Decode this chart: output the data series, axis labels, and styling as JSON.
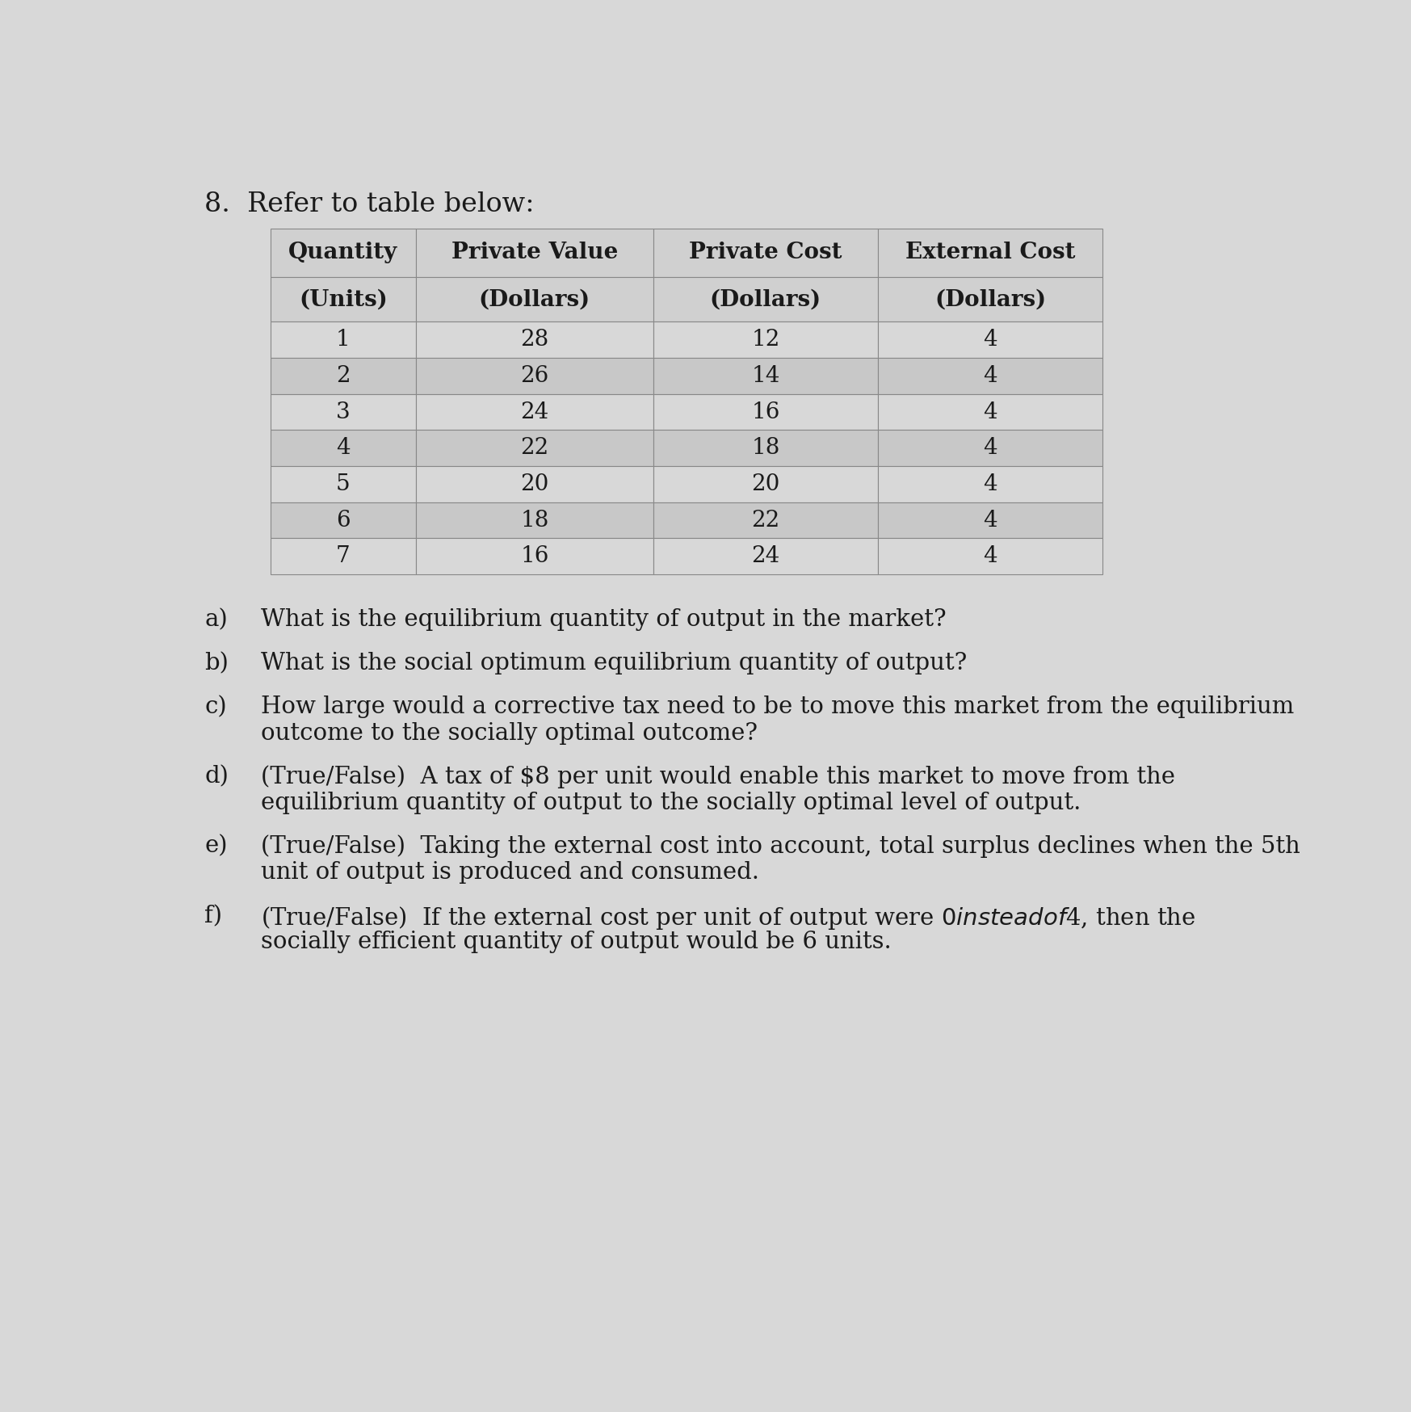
{
  "title": "8.  Refer to table below:",
  "col_headers_line1": [
    "Quantity",
    "Private Value",
    "Private Cost",
    "External Cost"
  ],
  "col_headers_line2": [
    "(Units)",
    "(Dollars)",
    "(Dollars)",
    "(Dollars)"
  ],
  "table_data": [
    [
      "1",
      "28",
      "12",
      "4"
    ],
    [
      "2",
      "26",
      "14",
      "4"
    ],
    [
      "3",
      "24",
      "16",
      "4"
    ],
    [
      "4",
      "22",
      "18",
      "4"
    ],
    [
      "5",
      "20",
      "20",
      "4"
    ],
    [
      "6",
      "18",
      "22",
      "4"
    ],
    [
      "7",
      "16",
      "24",
      "4"
    ]
  ],
  "questions": [
    {
      "label": "a)",
      "line1": "What is the equilibrium quantity of output in the market?",
      "line2": ""
    },
    {
      "label": "b)",
      "line1": "What is the social optimum equilibrium quantity of output?",
      "line2": ""
    },
    {
      "label": "c)",
      "line1": "How large would a corrective tax need to be to move this market from the equilibrium",
      "line2": "outcome to the socially optimal outcome?"
    },
    {
      "label": "d)",
      "line1": "(True/False)  A tax of $8 per unit would enable this market to move from the",
      "line2": "equilibrium quantity of output to the socially optimal level of output."
    },
    {
      "label": "e)",
      "line1": "(True/False)  Taking the external cost into account, total surplus declines when the 5th",
      "line2": "unit of output is produced and consumed."
    },
    {
      "label": "f)",
      "line1": "(True/False)  If the external cost per unit of output were $0 instead of $4, then the",
      "line2": "socially efficient quantity of output would be 6 units."
    }
  ],
  "bg_color": "#d8d8d8",
  "header_cell_color": "#d0d0d0",
  "data_row_light": "#d8d8d8",
  "data_row_dark": "#c8c8c8",
  "border_color": "#888888",
  "text_color": "#1a1a1a",
  "font_size_title": 24,
  "font_size_header": 20,
  "font_size_data": 20,
  "font_size_questions": 21
}
